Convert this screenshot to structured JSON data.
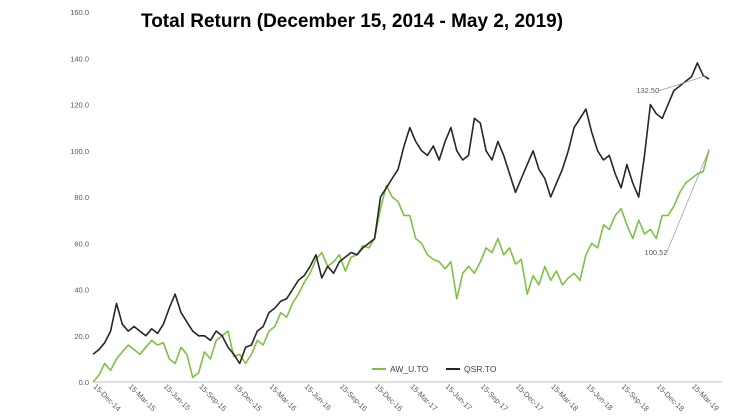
{
  "chart_data": {
    "type": "line",
    "title": "Total Return (December 15, 2014 - May 2, 2019)",
    "xlabel": "",
    "ylabel": "",
    "ylim": [
      0,
      160
    ],
    "y_ticks": [
      "0.0",
      "20.0",
      "40.0",
      "60.0",
      "80.0",
      "100.0",
      "120.0",
      "140.0",
      "160.0"
    ],
    "x_tick_labels": [
      "15-Dec-14",
      "15-Mar-15",
      "15-Jun-15",
      "15-Sep-15",
      "15-Dec-15",
      "15-Mar-16",
      "15-Jun-16",
      "15-Sep-16",
      "15-Dec-16",
      "15-Mar-17",
      "15-Jun-17",
      "15-Sep-17",
      "15-Dec-17",
      "15-Mar-18",
      "15-Jun-18",
      "15-Sep-18",
      "15-Dec-18",
      "15-Mar-19"
    ],
    "x_tick_positions": [
      0,
      3,
      6,
      9,
      12,
      15,
      18,
      21,
      24,
      27,
      30,
      33,
      36,
      39,
      42,
      45,
      48,
      51
    ],
    "x_range": [
      0,
      53.6
    ],
    "grid": "none",
    "legend_position": "bottom-center",
    "series": [
      {
        "name": "AW_U.TO",
        "color": "#7dc242",
        "x": [
          0,
          0.5,
          1,
          1.5,
          2,
          2.5,
          3,
          3.5,
          4,
          4.5,
          5,
          5.5,
          6,
          6.5,
          7,
          7.5,
          8,
          8.5,
          9,
          9.5,
          10,
          10.5,
          11,
          11.5,
          12,
          12.5,
          13,
          13.5,
          14,
          14.5,
          15,
          15.5,
          16,
          16.5,
          17,
          17.5,
          18,
          18.5,
          19,
          19.5,
          20,
          20.5,
          21,
          21.5,
          22,
          22.5,
          23,
          23.5,
          24,
          24.5,
          25,
          25.5,
          26,
          26.5,
          27,
          27.5,
          28,
          28.5,
          29,
          29.5,
          30,
          30.5,
          31,
          31.5,
          32,
          32.5,
          33,
          33.5,
          34,
          34.5,
          35,
          35.5,
          36,
          36.5,
          37,
          37.5,
          38,
          38.5,
          39,
          39.5,
          40,
          40.5,
          41,
          41.5,
          42,
          42.5,
          43,
          43.5,
          44,
          44.5,
          45,
          45.5,
          46,
          46.5,
          47,
          47.5,
          48,
          48.5,
          49,
          49.5,
          50,
          50.5,
          51,
          51.5,
          52,
          52.5
        ],
        "y": [
          0,
          3,
          8,
          5,
          10,
          13,
          16,
          14,
          12,
          15,
          18,
          16,
          17,
          10,
          8,
          15,
          12,
          2,
          4,
          13,
          10,
          18,
          20,
          22,
          11,
          12,
          8,
          12,
          18,
          16,
          22,
          24,
          30,
          28,
          34,
          38,
          43,
          47,
          53,
          56,
          50,
          52,
          55,
          48,
          54,
          55,
          59,
          58,
          62,
          75,
          85,
          80,
          78,
          72,
          72,
          62,
          60,
          55,
          53,
          52,
          49,
          52,
          36,
          47,
          50,
          47,
          52,
          58,
          56,
          62,
          55,
          58,
          51,
          53,
          38,
          46,
          42,
          50,
          44,
          48,
          42,
          45,
          47,
          44,
          55,
          60,
          58,
          68,
          66,
          72,
          75,
          68,
          62,
          70,
          64,
          66,
          62,
          72,
          72,
          76,
          82,
          86,
          88,
          90,
          91,
          100.52
        ]
      },
      {
        "name": "QSR.TO",
        "color": "#262626",
        "x": [
          0,
          0.5,
          1,
          1.5,
          2,
          2.5,
          3,
          3.5,
          4,
          4.5,
          5,
          5.5,
          6,
          6.5,
          7,
          7.5,
          8,
          8.5,
          9,
          9.5,
          10,
          10.5,
          11,
          11.5,
          12,
          12.5,
          13,
          13.5,
          14,
          14.5,
          15,
          15.5,
          16,
          16.5,
          17,
          17.5,
          18,
          18.5,
          19,
          19.5,
          20,
          20.5,
          21,
          21.5,
          22,
          22.5,
          23,
          23.5,
          24,
          24.5,
          25,
          25.5,
          26,
          26.5,
          27,
          27.5,
          28,
          28.5,
          29,
          29.5,
          30,
          30.5,
          31,
          31.5,
          32,
          32.5,
          33,
          33.5,
          34,
          34.5,
          35,
          35.5,
          36,
          36.5,
          37,
          37.5,
          38,
          38.5,
          39,
          39.5,
          40,
          40.5,
          41,
          41.5,
          42,
          42.5,
          43,
          43.5,
          44,
          44.5,
          45,
          45.5,
          46,
          46.5,
          47,
          47.5,
          48,
          48.5,
          49,
          49.5,
          50,
          50.5,
          51,
          51.5,
          52,
          52.5
        ],
        "y": [
          12,
          14,
          17,
          22,
          34,
          25,
          22,
          24,
          22,
          20,
          23,
          21,
          25,
          32,
          38,
          30,
          26,
          22,
          20,
          20,
          18,
          22,
          20,
          15,
          12,
          8,
          15,
          16,
          22,
          24,
          30,
          32,
          35,
          36,
          40,
          44,
          46,
          50,
          55,
          45,
          50,
          47,
          52,
          54,
          56,
          55,
          58,
          60,
          62,
          80,
          84,
          88,
          92,
          102,
          110,
          104,
          100,
          98,
          102,
          96,
          104,
          110,
          100,
          96,
          98,
          114,
          112,
          100,
          96,
          104,
          98,
          90,
          82,
          88,
          94,
          100,
          92,
          88,
          80,
          86,
          92,
          100,
          110,
          114,
          118,
          108,
          100,
          96,
          98,
          90,
          84,
          94,
          86,
          80,
          98,
          120,
          116,
          114,
          120,
          126,
          128,
          130,
          132,
          138,
          132.5,
          131
        ]
      }
    ],
    "annotations": [
      {
        "text": "132.50",
        "series": 1,
        "x": 52.3,
        "y": 132.5,
        "label_x": 46.3,
        "label_y": 125
      },
      {
        "text": "100.52",
        "series": 0,
        "x": 52.5,
        "y": 100.52,
        "label_x": 47.0,
        "label_y": 55
      }
    ]
  }
}
